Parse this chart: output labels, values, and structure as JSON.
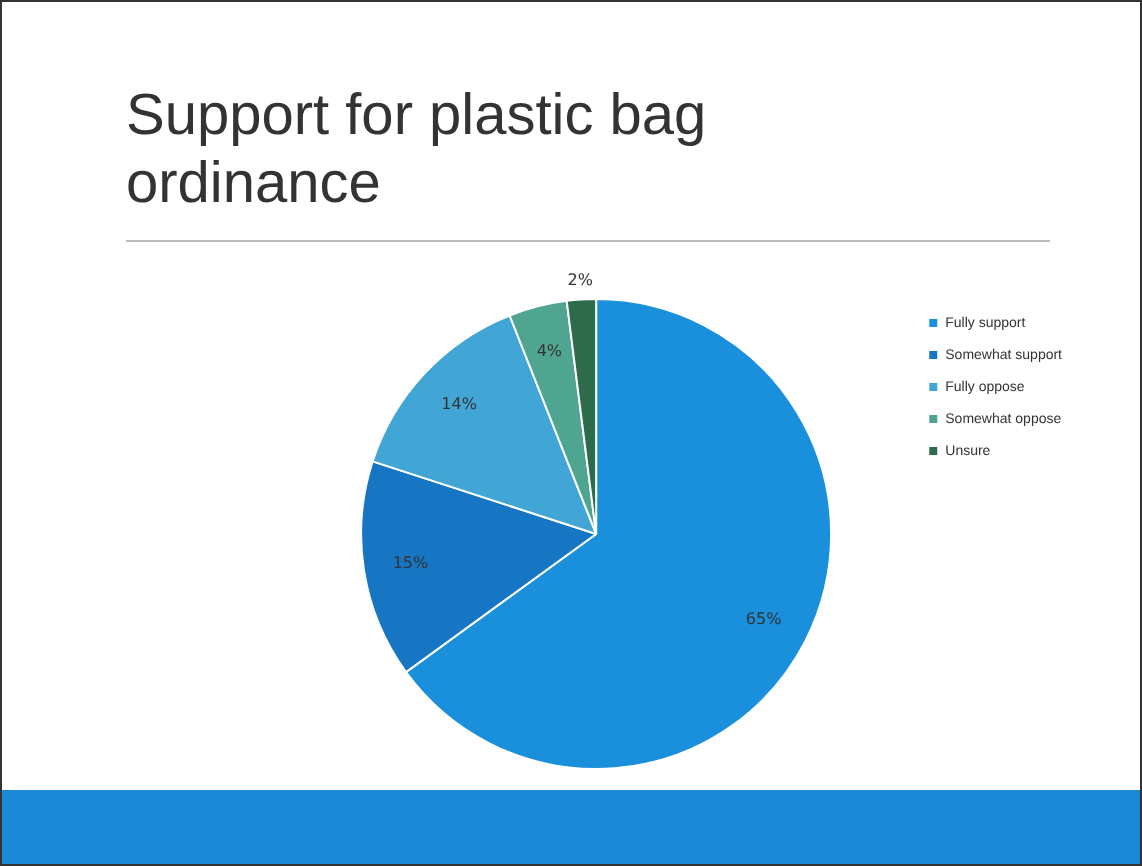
{
  "chart_data": {
    "type": "pie",
    "title": "Support for plastic bag ordinance",
    "categories": [
      "Fully support",
      "Somewhat support",
      "Fully oppose",
      "Somewhat oppose",
      "Unsure"
    ],
    "values": [
      65,
      15,
      14,
      4,
      2
    ],
    "colors": [
      "#1a8fdc",
      "#1676c4",
      "#41a6d6",
      "#4fa58f",
      "#2e6b4a"
    ],
    "value_labels": [
      "65%",
      "15%",
      "14%",
      "4%",
      "2%"
    ],
    "legend": "right"
  }
}
